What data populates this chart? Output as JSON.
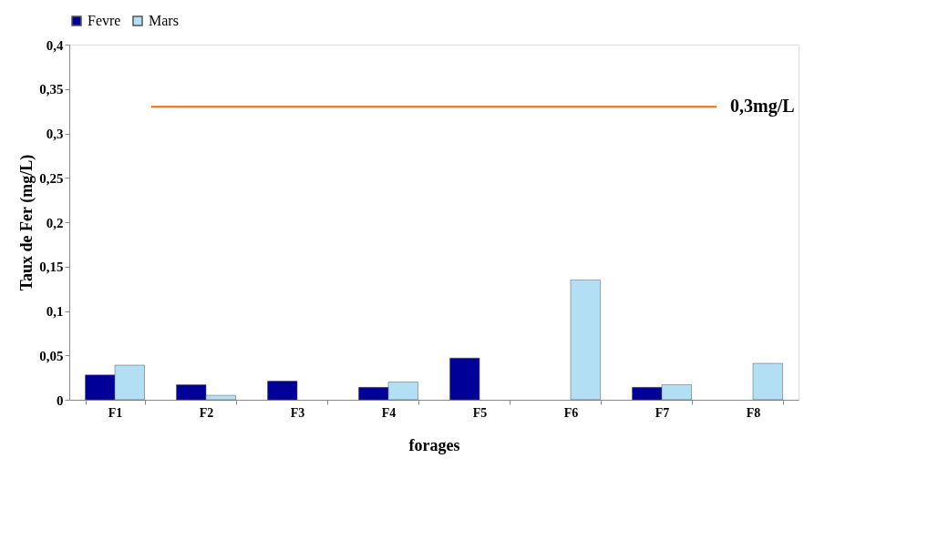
{
  "chart_data": {
    "type": "bar",
    "categories": [
      "F1",
      "F2",
      "F3",
      "F4",
      "F5",
      "F6",
      "F7",
      "F8"
    ],
    "series": [
      {
        "name": "Fevre",
        "color": "#000099",
        "values": [
          0.028,
          0.017,
          0.021,
          0.014,
          0.047,
          null,
          0.014,
          null
        ]
      },
      {
        "name": "Mars",
        "color": "#b3dff5",
        "values": [
          0.039,
          0.005,
          null,
          0.02,
          null,
          0.135,
          0.017,
          0.041
        ]
      }
    ],
    "xlabel": "forages",
    "ylabel": "Taux de Fer (mg/L)",
    "ylim": [
      0,
      0.4
    ],
    "yticks": [
      {
        "value": 0,
        "label": "0"
      },
      {
        "value": 0.05,
        "label": "0,05"
      },
      {
        "value": 0.1,
        "label": "0,1"
      },
      {
        "value": 0.15,
        "label": "0,15"
      },
      {
        "value": 0.2,
        "label": "0,2"
      },
      {
        "value": 0.25,
        "label": "0,25"
      },
      {
        "value": 0.3,
        "label": "0,3"
      },
      {
        "value": 0.35,
        "label": "0,35"
      },
      {
        "value": 0.4,
        "label": "0,4"
      }
    ],
    "ref_lines": [
      {
        "axis": "y",
        "value": 0.33,
        "label": "0,3mg/L",
        "color": "#ff6600"
      }
    ],
    "legend": "top",
    "grid": false
  }
}
